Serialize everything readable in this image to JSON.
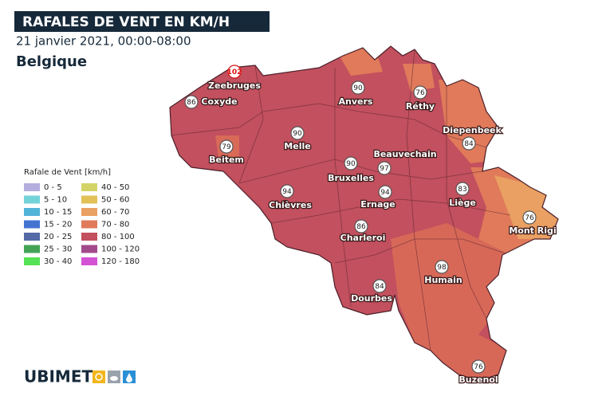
{
  "header": {
    "title": "RAFALES DE VENT EN KM/H",
    "subtitle": "21 janvier 2021, 00:00-08:00",
    "region": "Belgique"
  },
  "legend": {
    "title": "Rafale de Vent [km/h]",
    "items": [
      {
        "label": "0 - 5",
        "color": "#b3aede"
      },
      {
        "label": "5 - 10",
        "color": "#72d3d9"
      },
      {
        "label": "10 - 15",
        "color": "#52b3d9"
      },
      {
        "label": "15 - 20",
        "color": "#4474d2"
      },
      {
        "label": "20 - 25",
        "color": "#5569a6"
      },
      {
        "label": "25 - 30",
        "color": "#43a456"
      },
      {
        "label": "30 - 40",
        "color": "#55e255"
      },
      {
        "label": "40 - 50",
        "color": "#d4d466"
      },
      {
        "label": "50 - 60",
        "color": "#e2c257"
      },
      {
        "label": "60 - 70",
        "color": "#e9a062"
      },
      {
        "label": "70 - 80",
        "color": "#e07a5a"
      },
      {
        "label": "80 - 100",
        "color": "#c2505e"
      },
      {
        "label": "100 - 120",
        "color": "#a24a8c"
      },
      {
        "label": "120 - 180",
        "color": "#d452d4"
      }
    ]
  },
  "stations": [
    {
      "name": "Zeebruges",
      "value": "102"
    },
    {
      "name": "Coxyde",
      "value": "86"
    },
    {
      "name": "Anvers",
      "value": "90"
    },
    {
      "name": "Réthy",
      "value": "76"
    },
    {
      "name": "Diepenbeek",
      "value": "84"
    },
    {
      "name": "Melle",
      "value": "90"
    },
    {
      "name": "Beitem",
      "value": "79"
    },
    {
      "name": "Beauvechain",
      "value": "97"
    },
    {
      "name": "Bruxelles",
      "value": "90"
    },
    {
      "name": "Chièvres",
      "value": "94"
    },
    {
      "name": "Ernage",
      "value": "94"
    },
    {
      "name": "Liège",
      "value": "83"
    },
    {
      "name": "Mont Rigi",
      "value": "76"
    },
    {
      "name": "Charleroi",
      "value": "86"
    },
    {
      "name": "Humain",
      "value": "98"
    },
    {
      "name": "Dourbes",
      "value": "84"
    },
    {
      "name": "Buzenol",
      "value": "76"
    }
  ],
  "brand": "UBIMET"
}
